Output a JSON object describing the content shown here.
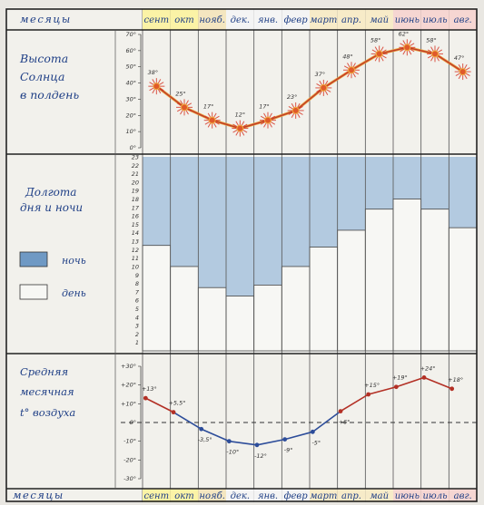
{
  "header": {
    "left_label": "месяцы"
  },
  "footer": {
    "left_label": "месяцы"
  },
  "months": [
    "сент",
    "окт",
    "нояб.",
    "дек.",
    "янв.",
    "февр",
    "март",
    "апр.",
    "май",
    "июнь",
    "июль",
    "авг."
  ],
  "month_colors": [
    "#fbf3a6",
    "#fbf3a6",
    "#f4e6c0",
    "#f4f4f4",
    "#f4f4f4",
    "#f4f4f4",
    "#f7ebc8",
    "#f7ebc8",
    "#f7ebc8",
    "#f6d6d2",
    "#f6d6d2",
    "#f6d6d2"
  ],
  "chart_data": [
    {
      "type": "line",
      "title": "Высота Солнца в полдень",
      "categories": [
        "сент",
        "окт",
        "нояб.",
        "дек.",
        "янв.",
        "февр",
        "март",
        "апр.",
        "май",
        "июнь",
        "июль",
        "авг."
      ],
      "values": [
        38,
        25,
        17,
        12,
        17,
        23,
        37,
        48,
        58,
        62,
        58,
        47
      ],
      "value_labels": [
        "38°",
        "25°",
        "17°",
        "12°",
        "17°",
        "23°",
        "37°",
        "48°",
        "58°",
        "62°",
        "58°",
        "47°"
      ],
      "ylim": [
        0,
        70
      ],
      "yticks": [
        "0°",
        "10°",
        "20°",
        "30°",
        "40°",
        "50°",
        "60°",
        "70°"
      ],
      "line_color": "#c0392b",
      "marker_color": "#d63a2a"
    },
    {
      "type": "bar",
      "title": "Долгота дня и ночи",
      "categories": [
        "сент",
        "окт",
        "нояб.",
        "дек.",
        "янв.",
        "февр",
        "март",
        "апр.",
        "май",
        "июнь",
        "июль",
        "авг."
      ],
      "series": [
        {
          "name": "день",
          "values": [
            12.5,
            10,
            7.5,
            6.5,
            7.8,
            10,
            12.3,
            14.3,
            16.8,
            18,
            16.8,
            14.6
          ]
        }
      ],
      "ylim": [
        0,
        23
      ],
      "yticks": [
        "1",
        "2",
        "3",
        "4",
        "5",
        "6",
        "7",
        "8",
        "9",
        "10",
        "11",
        "12",
        "13",
        "14",
        "15",
        "16",
        "17",
        "18",
        "19",
        "20",
        "21",
        "22",
        "23"
      ],
      "legend": [
        {
          "label": "ночь",
          "color": "#9ab8d6"
        },
        {
          "label": "день",
          "color": "#f7f7f4"
        }
      ],
      "night_color": "#a7c2dc",
      "day_color": "#f7f7f4"
    },
    {
      "type": "line",
      "title": "Средняя месячная t° воздуха",
      "categories": [
        "сент",
        "окт",
        "нояб.",
        "дек.",
        "янв.",
        "февр",
        "март",
        "апр.",
        "май",
        "июнь",
        "июль",
        "авг."
      ],
      "values": [
        13,
        5.5,
        -3.5,
        -10,
        -12,
        -9,
        -5,
        6,
        15,
        19,
        24,
        18
      ],
      "value_labels": [
        "+13°",
        "+5,5°",
        "-3,5°",
        "-10°",
        "-12°",
        "-9°",
        "-5°",
        "+6°",
        "+15°",
        "+19°",
        "+24°",
        "+18°"
      ],
      "ylim": [
        -30,
        30
      ],
      "yticks": [
        "-30°",
        "-20°",
        "-10°",
        "0°",
        "+10°",
        "+20°",
        "+30°"
      ],
      "warm_color": "#b33025",
      "cold_color": "#2d4d9a"
    }
  ]
}
